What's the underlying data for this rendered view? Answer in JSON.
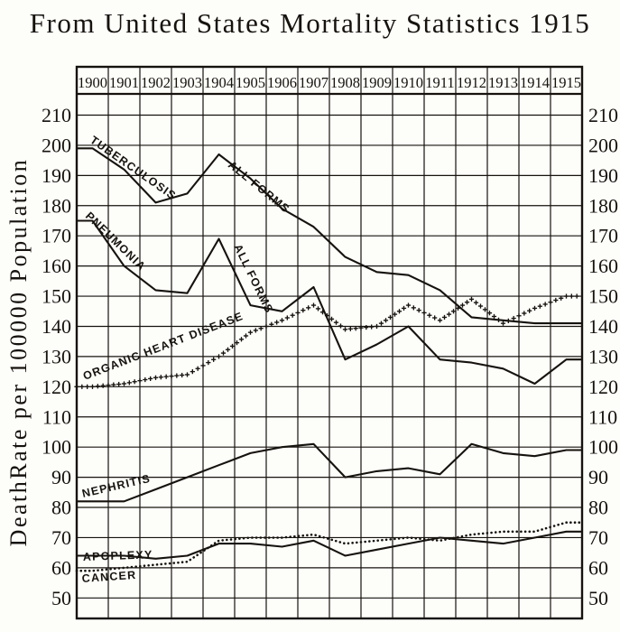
{
  "title": "From United States Mortality Statistics 1915",
  "y_axis_title": "DeathRate per 100000 Population",
  "colors": {
    "ink": "#16130f",
    "paper": "#fdfdfa"
  },
  "chart_data": {
    "type": "line",
    "title": "From United States Mortality Statistics 1915",
    "xlabel": "",
    "ylabel": "DeathRate per 100000 Population",
    "ylim": [
      50,
      210
    ],
    "y_ticks": [
      210,
      200,
      190,
      180,
      170,
      160,
      150,
      140,
      130,
      120,
      110,
      100,
      90,
      80,
      70,
      60,
      50
    ],
    "grid": true,
    "legend_position": "labels-along-curves",
    "x": [
      "1900",
      "1901",
      "1902",
      "1903",
      "1904",
      "1905",
      "1906",
      "1907",
      "1908",
      "1909",
      "1910",
      "1911",
      "1912",
      "1913",
      "1914",
      "1915"
    ],
    "series": [
      {
        "name": "Tuberculosis (All Forms)",
        "slug": "tuberculosis",
        "style": "solid",
        "values": [
          199,
          192,
          181,
          184,
          197,
          189,
          179,
          173,
          163,
          158,
          157,
          152,
          143,
          142,
          141,
          141
        ],
        "labels": [
          {
            "text": "TUBERCULOSIS",
            "x": 99,
            "y": 157,
            "angle": 35
          },
          {
            "text": "ALL FORMS",
            "x": 252,
            "y": 184,
            "angle": 39
          }
        ]
      },
      {
        "name": "Pneumonia (All Forms)",
        "slug": "pneumonia",
        "style": "solid",
        "values": [
          175,
          160,
          152,
          151,
          169,
          147,
          145,
          153,
          129,
          134,
          140,
          129,
          128,
          126,
          121,
          129
        ],
        "labels": [
          {
            "text": "PNEUMONIA",
            "x": 94,
            "y": 240,
            "angle": 44
          },
          {
            "text": "ALL FORMS",
            "x": 259,
            "y": 273,
            "angle": 64
          }
        ]
      },
      {
        "name": "Organic Heart Disease",
        "slug": "organic-heart-disease",
        "style": "plus",
        "values": [
          120,
          121,
          123,
          124,
          130,
          138,
          142,
          147,
          139,
          140,
          147,
          142,
          149,
          141,
          146,
          150
        ],
        "labels": [
          {
            "text": "ORGANIC HEART DISEASE",
            "x": 94,
            "y": 421,
            "angle": -21
          }
        ]
      },
      {
        "name": "Nephritis",
        "slug": "nephritis",
        "style": "solid",
        "values": [
          82,
          82,
          86,
          90,
          94,
          98,
          100,
          101,
          90,
          92,
          93,
          91,
          101,
          98,
          97,
          99
        ],
        "labels": [
          {
            "text": "NEPHRITIS",
            "x": 92,
            "y": 551,
            "angle": -13
          }
        ]
      },
      {
        "name": "Apoplexy",
        "slug": "apoplexy",
        "style": "solid",
        "values": [
          64,
          64,
          63,
          64,
          68,
          68,
          67,
          69,
          64,
          66,
          68,
          70,
          69,
          68,
          70,
          72
        ],
        "labels": [
          {
            "text": "APOPLEXY",
            "x": 92,
            "y": 621,
            "angle": -2
          }
        ]
      },
      {
        "name": "Cancer",
        "slug": "cancer",
        "style": "dotted",
        "values": [
          59,
          60,
          61,
          62,
          69,
          70,
          70,
          71,
          68,
          69,
          70,
          69,
          71,
          72,
          72,
          75
        ],
        "labels": [
          {
            "text": "CANCER",
            "x": 91,
            "y": 645,
            "angle": -4
          }
        ]
      }
    ]
  }
}
